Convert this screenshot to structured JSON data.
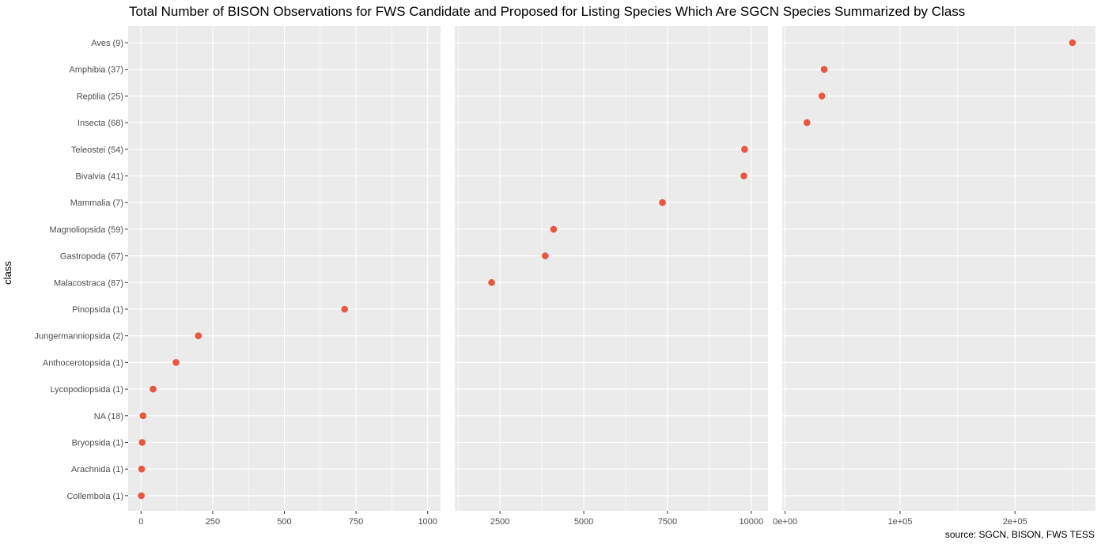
{
  "chart_data": {
    "type": "scatter",
    "title": "Total Number of BISON Observations for FWS Candidate and Proposed for Listing Species Which Are SGCN Species Summarized by Class",
    "ylabel": "class",
    "xlabel": "",
    "caption": "source: SGCN, BISON, FWS TESS",
    "point_color": "#e8573f",
    "panel_bg": "#ebebeb",
    "grid_color": "#ffffff",
    "categories": [
      "Aves (9)",
      "Amphibia (37)",
      "Reptilia (25)",
      "Insecta (68)",
      "Teleostei (54)",
      "Bivalvia (41)",
      "Mammalia (7)",
      "Magnoliopsida (59)",
      "Gastropoda (67)",
      "Malacostraca (87)",
      "Pinopsida (1)",
      "Jungermanniopsida (2)",
      "Anthocerotopsida (1)",
      "Lycopodiopsida (1)",
      "NA (18)",
      "Bryopsida (1)",
      "Arachnida (1)",
      "Collembola (1)"
    ],
    "panels": [
      {
        "xlim": [
          -45,
          1045
        ],
        "ticks": [
          0,
          250,
          500,
          750,
          1000
        ],
        "tick_labels": [
          "0",
          "250",
          "500",
          "750",
          "1000"
        ],
        "points": [
          {
            "category": "Pinopsida (1)",
            "x": 710
          },
          {
            "category": "Jungermanniopsida (2)",
            "x": 200
          },
          {
            "category": "Anthocerotopsida (1)",
            "x": 122
          },
          {
            "category": "Lycopodiopsida (1)",
            "x": 42
          },
          {
            "category": "NA (18)",
            "x": 7
          },
          {
            "category": "Bryopsida (1)",
            "x": 4
          },
          {
            "category": "Arachnida (1)",
            "x": 2
          },
          {
            "category": "Collembola (1)",
            "x": 1
          }
        ]
      },
      {
        "xlim": [
          1150,
          10500
        ],
        "ticks": [
          2500,
          5000,
          7500,
          10000
        ],
        "tick_labels": [
          "2500",
          "5000",
          "7500",
          "10000"
        ],
        "points": [
          {
            "category": "Teleostei (54)",
            "x": 9800
          },
          {
            "category": "Bivalvia (41)",
            "x": 9780
          },
          {
            "category": "Mammalia (7)",
            "x": 7350
          },
          {
            "category": "Magnoliopsida (59)",
            "x": 4100
          },
          {
            "category": "Gastropoda (67)",
            "x": 3850
          },
          {
            "category": "Malacostraca (87)",
            "x": 2250
          }
        ]
      },
      {
        "xlim": [
          -2500,
          270000
        ],
        "ticks": [
          0,
          100000,
          200000
        ],
        "tick_labels": [
          "0e+00",
          "1e+05",
          "2e+05"
        ],
        "points": [
          {
            "category": "Aves (9)",
            "x": 250000
          },
          {
            "category": "Amphibia (37)",
            "x": 34000
          },
          {
            "category": "Reptilia (25)",
            "x": 32000
          },
          {
            "category": "Insecta (68)",
            "x": 19000
          }
        ]
      }
    ]
  }
}
